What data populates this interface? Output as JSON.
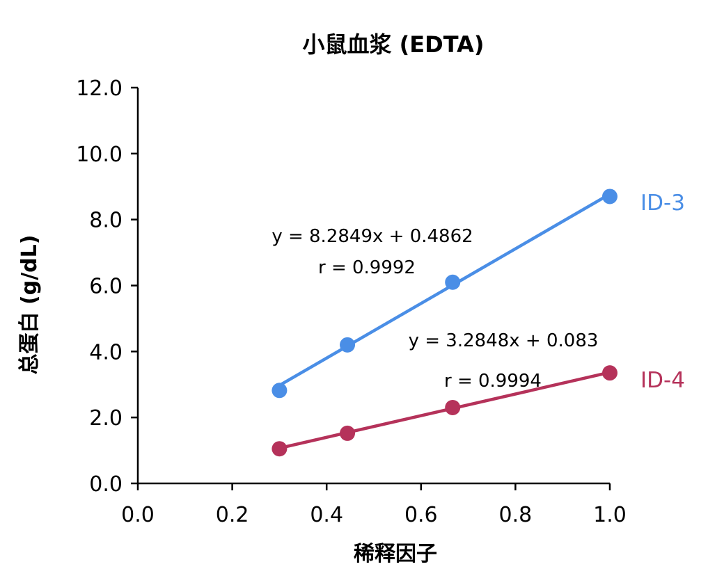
{
  "chart_data": {
    "type": "line",
    "title": "小鼠血浆 (EDTA)",
    "xlabel": "稀释因子",
    "ylabel": "总蛋白 (g/dL)",
    "xlim": [
      0.0,
      1.0
    ],
    "ylim": [
      0.0,
      12.0
    ],
    "x_ticks": [
      "0.0",
      "0.2",
      "0.4",
      "0.6",
      "0.8",
      "1.0"
    ],
    "y_ticks": [
      "0.0",
      "2.0",
      "4.0",
      "6.0",
      "8.0",
      "10.0",
      "12.0"
    ],
    "grid": false,
    "series": [
      {
        "name": "ID-3",
        "color": "#4a8ee6",
        "x": [
          0.3,
          0.444,
          0.667,
          1.0
        ],
        "y": [
          2.82,
          4.2,
          6.1,
          8.7
        ],
        "equation": "y = 8.2849x + 0.4862",
        "r": "r = 0.9992",
        "fit": {
          "slope": 8.2849,
          "intercept": 0.4862
        }
      },
      {
        "name": "ID-4",
        "color": "#b5325a",
        "x": [
          0.3,
          0.444,
          0.667,
          1.0
        ],
        "y": [
          1.05,
          1.52,
          2.3,
          3.35
        ],
        "equation": "y = 3.2848x + 0.083",
        "r": "r = 0.9994",
        "fit": {
          "slope": 3.2848,
          "intercept": 0.083
        }
      }
    ]
  }
}
